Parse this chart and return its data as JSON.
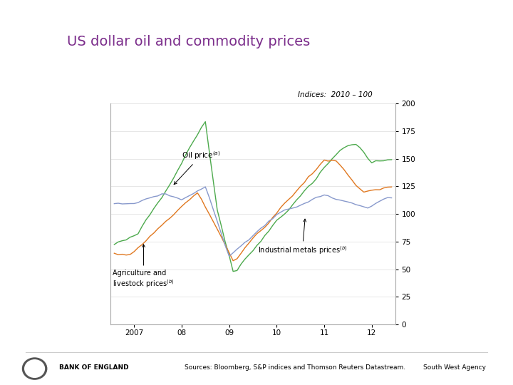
{
  "title": "US dollar oil and commodity prices",
  "title_color": "#7B2D8B",
  "title_fontsize": 14,
  "subtitle": "Indices:  2010 – 100",
  "subtitle_fontsize": 7.5,
  "background_color": "#ffffff",
  "plot_bg_color": "#ffffff",
  "xmin": 2006.5,
  "xmax": 2012.5,
  "ymin": 0,
  "ymax": 200,
  "yticks": [
    0,
    25,
    50,
    75,
    100,
    125,
    150,
    175,
    200
  ],
  "xtick_labels": [
    "2007",
    "08",
    "09",
    "10",
    "11",
    "12"
  ],
  "xtick_positions": [
    2007,
    2008,
    2009,
    2010,
    2011,
    2012
  ],
  "oil_color": "#4daa4d",
  "metals_color": "#e07820",
  "agri_color": "#8899cc",
  "sources_text": "Sources: Bloomberg, S&P indices and Thomson Reuters Datastream.",
  "footer_right": "South West Agency"
}
